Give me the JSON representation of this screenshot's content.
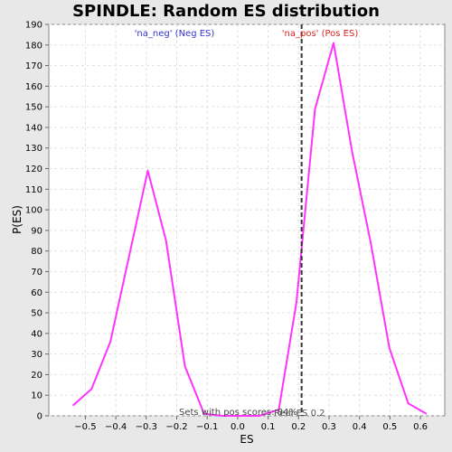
{
  "chart_data": {
    "type": "line",
    "title": "SPINDLE: Random ES distribution",
    "xlabel": "ES",
    "ylabel": "P(ES)",
    "xlim": [
      -0.62,
      0.68
    ],
    "ylim": [
      0,
      190
    ],
    "xticks": [
      -0.5,
      -0.4,
      -0.3,
      -0.2,
      -0.1,
      0.0,
      0.1,
      0.2,
      0.3,
      0.4,
      0.5,
      0.6
    ],
    "xtick_labels": [
      "−0.5",
      "−0.4",
      "−0.3",
      "−0.2",
      "−0.1",
      "0.0",
      "0.1",
      "0.2",
      "0.3",
      "0.4",
      "0.5",
      "0.6"
    ],
    "yticks": [
      0,
      10,
      20,
      30,
      40,
      50,
      60,
      70,
      80,
      90,
      100,
      110,
      120,
      130,
      140,
      150,
      160,
      170,
      180,
      190
    ],
    "grid": true,
    "series": [
      {
        "color": "#ff33ff",
        "points": [
          [
            -0.541,
            5
          ],
          [
            -0.48,
            13
          ],
          [
            -0.418,
            36
          ],
          [
            -0.295,
            119
          ],
          [
            -0.235,
            85
          ],
          [
            -0.173,
            24
          ],
          [
            -0.11,
            1
          ],
          [
            -0.05,
            0
          ],
          [
            0.01,
            0
          ],
          [
            0.07,
            0
          ],
          [
            0.135,
            3
          ],
          [
            0.193,
            55
          ],
          [
            0.254,
            149
          ],
          [
            0.315,
            181
          ],
          [
            0.376,
            128
          ],
          [
            0.437,
            84
          ],
          [
            0.498,
            33
          ],
          [
            0.56,
            6
          ],
          [
            0.62,
            1
          ]
        ]
      }
    ],
    "real_es": 0.21,
    "annotations": {
      "neg_label": "'na_neg' (Neg ES)",
      "pos_label": "'na_pos' (Pos ES)",
      "neg_color": "#3333cc",
      "pos_color": "#dd2222",
      "bottom_note": "Sets with pos scores: 84%",
      "real_es_label": "Real ES 0.2"
    }
  }
}
